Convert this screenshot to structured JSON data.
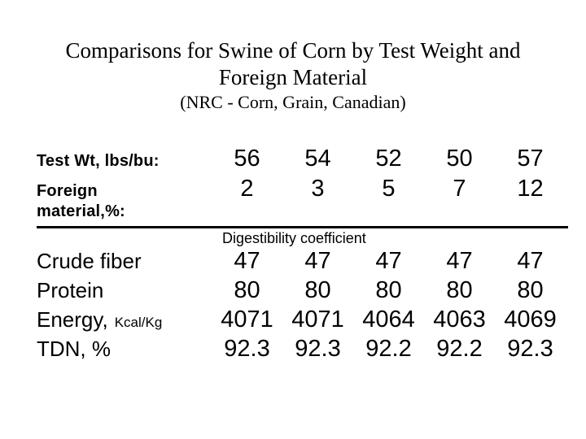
{
  "title": {
    "lines": [
      "Comparisons for Swine of Corn by Test Weight and",
      "Foreign Material"
    ],
    "subtitle": "(NRC - Corn, Grain, Canadian)"
  },
  "table": {
    "test_weight_row": {
      "label": "Test Wt, lbs/bu:",
      "values": [
        "56",
        "54",
        "52",
        "50",
        "57"
      ]
    },
    "foreign_material_row": {
      "label_lines": [
        "Foreign",
        "material,%:"
      ],
      "values": [
        "2",
        "3",
        "5",
        "7",
        "12"
      ]
    },
    "section_header": "Digestibility coefficient",
    "rows": [
      {
        "label": "Crude fiber",
        "unit": "",
        "values": [
          "47",
          "47",
          "47",
          "47",
          "47"
        ]
      },
      {
        "label": "Protein",
        "unit": "",
        "values": [
          "80",
          "80",
          "80",
          "80",
          "80"
        ]
      },
      {
        "label": "Energy,",
        "unit": "Kcal/Kg",
        "values": [
          "4071",
          "4071",
          "4064",
          "4063",
          "4069"
        ]
      },
      {
        "label": "TDN, %",
        "unit": "",
        "values": [
          "92.3",
          "92.3",
          "92.2",
          "92.2",
          "92.3"
        ]
      }
    ]
  },
  "colors": {
    "background": "#ffffff",
    "text": "#000000"
  }
}
